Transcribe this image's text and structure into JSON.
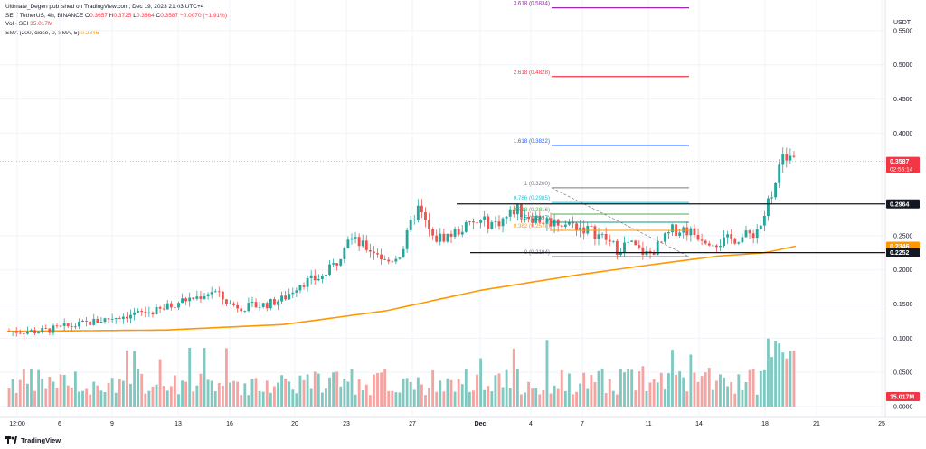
{
  "header": {
    "publisher_line": "Ultimate_Degen published on TradingView.com, Dec 19, 2023 21:03 UTC+4",
    "symbol": "SEI / TetherUS, 4h, BINANCE",
    "ohlc": {
      "o_label": "O",
      "o": "0.3657",
      "h_label": "H",
      "h": "0.3725",
      "l_label": "L",
      "l": "0.3564",
      "c_label": "C",
      "c": "0.3587",
      "change": "−0.0070 (−1.91%)"
    },
    "vol_label": "Vol · SEI",
    "vol_value": "35.017M",
    "sma_label": "SMA (200, close, 0, SMA, 5)",
    "sma_value": "0.2346"
  },
  "footer": {
    "brand": "TradingView"
  },
  "colors": {
    "up": "#26a69a",
    "down": "#ef5350",
    "vol_up": "#7fc9c1",
    "vol_down": "#f5a4a2",
    "sma": "#ff9800",
    "price_badge": "#f23645",
    "dark_badge": "#131722",
    "grid": "#f0f3fa"
  },
  "chart_data": {
    "type": "candlestick",
    "currency": "USDT",
    "y_ticks": [
      "0.5500",
      "0.5000",
      "0.4500",
      "0.4000",
      "0.2500",
      "0.2000",
      "0.1500",
      "0.1000",
      "0.0500",
      "0.0000"
    ],
    "x_ticks": [
      "12:00",
      "6",
      "9",
      "13",
      "16",
      "20",
      "23",
      "27",
      "Dec",
      "4",
      "7",
      "11",
      "14",
      "18",
      "21",
      "25"
    ],
    "price_range": [
      0.0,
      0.58
    ],
    "price_badges": [
      {
        "label": "0.3587",
        "sub": "02:56:14",
        "value": 0.3587,
        "color": "#f23645"
      },
      {
        "label": "0.2964",
        "value": 0.2964,
        "color": "#131722"
      },
      {
        "label": "0.2346",
        "value": 0.2346,
        "color": "#ff9800"
      },
      {
        "label": "0.2252",
        "value": 0.2252,
        "color": "#131722"
      }
    ],
    "volume_badge": {
      "label": "35.017M",
      "color": "#f23645"
    },
    "fib_levels": [
      {
        "label": "3.618 (0.5834)",
        "value": 0.5834,
        "color": "#9c27b0"
      },
      {
        "label": "2.618 (0.4828)",
        "value": 0.4828,
        "color": "#f23645"
      },
      {
        "label": "1.618 (0.3822)",
        "value": 0.3822,
        "color": "#2962ff"
      },
      {
        "label": "1 (0.3200)",
        "value": 0.32,
        "color": "#787b86"
      },
      {
        "label": "0.786 (0.2985)",
        "value": 0.2985,
        "color": "#26c6da"
      },
      {
        "label": "0.618 (0.2816)",
        "value": 0.2816,
        "color": "#4caf50"
      },
      {
        "label": "0.5 (0.2697)",
        "value": 0.2697,
        "color": "#089981"
      },
      {
        "label": "0.382 (0.2578)",
        "value": 0.2578,
        "color": "#ff9800"
      },
      {
        "label": "0 (0.2194)",
        "value": 0.2194,
        "color": "#787b86"
      }
    ],
    "horizontal_lines": [
      {
        "value": 0.2964,
        "label": "0.2964"
      },
      {
        "value": 0.2252,
        "label": "0.2252"
      }
    ],
    "price_path_anchors": [
      [
        0.0,
        0.11
      ],
      [
        0.04,
        0.11
      ],
      [
        0.09,
        0.12
      ],
      [
        0.14,
        0.132
      ],
      [
        0.19,
        0.14
      ],
      [
        0.22,
        0.155
      ],
      [
        0.24,
        0.16
      ],
      [
        0.26,
        0.17
      ],
      [
        0.28,
        0.15
      ],
      [
        0.3,
        0.145
      ],
      [
        0.33,
        0.15
      ],
      [
        0.35,
        0.158
      ],
      [
        0.37,
        0.18
      ],
      [
        0.4,
        0.19
      ],
      [
        0.42,
        0.215
      ],
      [
        0.43,
        0.25
      ],
      [
        0.45,
        0.235
      ],
      [
        0.47,
        0.225
      ],
      [
        0.48,
        0.21
      ],
      [
        0.5,
        0.225
      ],
      [
        0.51,
        0.26
      ],
      [
        0.52,
        0.292
      ],
      [
        0.53,
        0.27
      ],
      [
        0.54,
        0.245
      ],
      [
        0.56,
        0.25
      ],
      [
        0.58,
        0.262
      ],
      [
        0.6,
        0.27
      ],
      [
        0.62,
        0.268
      ],
      [
        0.635,
        0.278
      ],
      [
        0.645,
        0.29
      ],
      [
        0.66,
        0.28
      ],
      [
        0.68,
        0.272
      ],
      [
        0.7,
        0.27
      ],
      [
        0.72,
        0.265
      ],
      [
        0.74,
        0.258
      ],
      [
        0.76,
        0.245
      ],
      [
        0.775,
        0.23
      ],
      [
        0.79,
        0.24
      ],
      [
        0.8,
        0.23
      ],
      [
        0.815,
        0.222
      ],
      [
        0.83,
        0.238
      ],
      [
        0.845,
        0.258
      ],
      [
        0.86,
        0.26
      ],
      [
        0.875,
        0.252
      ],
      [
        0.89,
        0.245
      ],
      [
        0.905,
        0.24
      ],
      [
        0.92,
        0.245
      ],
      [
        0.935,
        0.248
      ],
      [
        0.95,
        0.255
      ],
      [
        0.96,
        0.27
      ],
      [
        0.97,
        0.31
      ],
      [
        0.98,
        0.345
      ],
      [
        0.99,
        0.37
      ],
      [
        1.0,
        0.359
      ]
    ],
    "sma_anchors": [
      [
        0.0,
        0.11
      ],
      [
        0.2,
        0.112
      ],
      [
        0.35,
        0.12
      ],
      [
        0.48,
        0.14
      ],
      [
        0.6,
        0.17
      ],
      [
        0.72,
        0.192
      ],
      [
        0.8,
        0.205
      ],
      [
        0.9,
        0.22
      ],
      [
        0.96,
        0.225
      ],
      [
        1.0,
        0.2346
      ]
    ]
  }
}
